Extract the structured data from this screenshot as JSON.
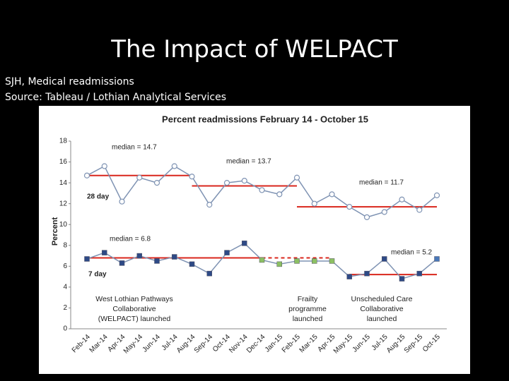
{
  "title": "The Impact of WELPACT",
  "subtitle_lines": [
    "SJH, Medical readmissions",
    "Source: Tableau / Lothian Analytical Services"
  ],
  "chart_data": {
    "type": "line",
    "title": "Percent readmissions February 14 - October 15",
    "y_label": "Percent",
    "categories": [
      "Feb-14",
      "Mar-14",
      "Apr-14",
      "May-14",
      "Jun-14",
      "Jul-14",
      "Aug-14",
      "Sep-14",
      "Oct-14",
      "Nov-14",
      "Dec-14",
      "Jan-15",
      "Feb-15",
      "Mar-15",
      "Apr-15",
      "May-15",
      "Jun-15",
      "Jul-15",
      "Aug-15",
      "Sep-15",
      "Oct-15"
    ],
    "ylim": [
      0,
      18
    ],
    "yticks": [
      0,
      2,
      4,
      6,
      8,
      10,
      12,
      14,
      16,
      18
    ],
    "grid": false,
    "series": [
      {
        "name": "28 day",
        "color": "#7f93b3",
        "marker": "circle",
        "marker_fill": "#ffffff",
        "values": [
          14.7,
          15.6,
          12.2,
          14.5,
          14.0,
          15.6,
          14.6,
          11.9,
          14.0,
          14.2,
          13.3,
          12.9,
          14.5,
          12.0,
          12.9,
          11.7,
          10.7,
          11.2,
          12.4,
          11.4,
          12.8
        ]
      },
      {
        "name": "7 day",
        "color": "#7f93b3",
        "marker": "square",
        "marker_colors": [
          "#2e4a86",
          "#2e4a86",
          "#2e4a86",
          "#2e4a86",
          "#2e4a86",
          "#2e4a86",
          "#2e4a86",
          "#2e4a86",
          "#2e4a86",
          "#2e4a86",
          "#8cc063",
          "#8cc063",
          "#8cc063",
          "#8cc063",
          "#8cc063",
          "#2e4a86",
          "#2e4a86",
          "#2e4a86",
          "#2e4a86",
          "#2e4a86",
          "#4a78b8"
        ],
        "values": [
          6.7,
          7.3,
          6.3,
          7.0,
          6.5,
          6.9,
          6.2,
          5.3,
          7.3,
          8.2,
          6.6,
          6.2,
          6.5,
          6.5,
          6.5,
          5.0,
          5.3,
          6.7,
          4.8,
          5.3,
          6.7
        ]
      }
    ],
    "medians": [
      {
        "label": "median = 14.7",
        "value": 14.7,
        "from": "Feb-14",
        "to": "Aug-14",
        "color": "#d9261c"
      },
      {
        "label": "median = 13.7",
        "value": 13.7,
        "from": "Aug-14",
        "to": "Feb-15",
        "color": "#d9261c"
      },
      {
        "label": "median = 11.7",
        "value": 11.7,
        "from": "Feb-15",
        "to": "Oct-15",
        "color": "#d9261c"
      },
      {
        "label": "median = 6.8",
        "value": 6.8,
        "from": "Feb-14",
        "to": "Dec-14",
        "color": "#d9261c"
      },
      {
        "value": 6.8,
        "from": "Dec-14",
        "to": "Apr-15",
        "color": "#d9261c",
        "dashed": true
      },
      {
        "label": "median = 5.2",
        "value": 5.2,
        "from": "May-15",
        "to": "Oct-15",
        "color": "#d9261c"
      }
    ],
    "annotations": [
      {
        "lines": [
          "West Lothian Pathways",
          "Collaborative",
          "(WELPACT) launched"
        ]
      },
      {
        "lines": [
          "Frailty",
          "programme",
          "launched"
        ]
      },
      {
        "lines": [
          "Unscheduled Care",
          "Collaborative",
          "launched"
        ]
      }
    ]
  }
}
